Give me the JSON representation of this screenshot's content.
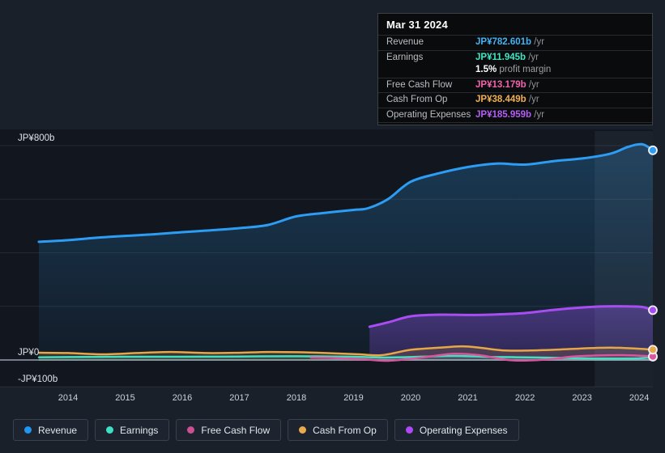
{
  "tooltip": {
    "date": "Mar 31 2024",
    "rows": [
      {
        "id": "revenue",
        "label": "Revenue",
        "value": "JP¥782.601b",
        "suffix": "/yr",
        "color": "#43b2f5"
      },
      {
        "id": "earnings",
        "label": "Earnings",
        "value": "JP¥11.945b",
        "suffix": "/yr",
        "color": "#3ee6c3",
        "sub_value": "1.5%",
        "sub_text": "profit margin"
      },
      {
        "id": "free-cash-flow",
        "label": "Free Cash Flow",
        "value": "JP¥13.179b",
        "suffix": "/yr",
        "color": "#f263ad"
      },
      {
        "id": "cash-from-op",
        "label": "Cash From Op",
        "value": "JP¥38.449b",
        "suffix": "/yr",
        "color": "#f0b153"
      },
      {
        "id": "operating-expenses",
        "label": "Operating Expenses",
        "value": "JP¥185.959b",
        "suffix": "/yr",
        "color": "#b55ef7"
      }
    ]
  },
  "legend": {
    "items": [
      {
        "id": "revenue",
        "label": "Revenue",
        "color": "#1e97f3"
      },
      {
        "id": "earnings",
        "label": "Earnings",
        "color": "#3be0c5"
      },
      {
        "id": "free-cash-flow",
        "label": "Free Cash Flow",
        "color": "#cf4f93"
      },
      {
        "id": "cash-from-op",
        "label": "Cash From Op",
        "color": "#e9a94e"
      },
      {
        "id": "operating-expenses",
        "label": "Operating Expenses",
        "color": "#ae49f5"
      }
    ]
  },
  "chart_data": {
    "type": "area",
    "title": "Financial history: revenue, earnings, cash flow and operating expenses (trailing twelve months)",
    "unit": "JP¥ billions",
    "xlim": [
      2013.49,
      2024.24
    ],
    "ylim": [
      -100,
      800
    ],
    "grid": true,
    "legend_position": "bottom",
    "x_axis": {
      "ticks": [
        2014,
        2015,
        2016,
        2017,
        2018,
        2019,
        2020,
        2021,
        2022,
        2023,
        2024
      ]
    },
    "y_axis": {
      "labels": [
        {
          "text": "JP¥800b",
          "value": 800
        },
        {
          "text": "JP¥0",
          "value": 0
        },
        {
          "text": "-JP¥100b",
          "value": -100
        }
      ],
      "gridline_values": [
        800,
        600,
        400,
        200,
        0,
        -100
      ]
    },
    "highlight_band": {
      "x_start": 2023.22,
      "x_end": 2024.24
    },
    "series": [
      {
        "name": "Revenue",
        "id": "revenue",
        "color": "#2d9df4",
        "width": 3,
        "fill": "gradient",
        "points": [
          [
            2013.49,
            441
          ],
          [
            2014,
            447
          ],
          [
            2014.5,
            456
          ],
          [
            2015,
            463
          ],
          [
            2015.5,
            469
          ],
          [
            2016,
            477
          ],
          [
            2016.5,
            484
          ],
          [
            2017,
            492
          ],
          [
            2017.5,
            504
          ],
          [
            2018,
            536
          ],
          [
            2018.5,
            549
          ],
          [
            2019,
            560
          ],
          [
            2019.25,
            566
          ],
          [
            2019.6,
            600
          ],
          [
            2020,
            665
          ],
          [
            2020.5,
            697
          ],
          [
            2021,
            720
          ],
          [
            2021.5,
            733
          ],
          [
            2022,
            729
          ],
          [
            2022.5,
            742
          ],
          [
            2023,
            752
          ],
          [
            2023.5,
            770
          ],
          [
            2023.8,
            795
          ],
          [
            2024.05,
            805
          ],
          [
            2024.24,
            782.601
          ]
        ]
      },
      {
        "name": "Operating Expenses",
        "id": "operating-expenses",
        "color": "#a94df2",
        "width": 3,
        "fill": "gradient",
        "points": [
          [
            2019.28,
            124
          ],
          [
            2019.6,
            140
          ],
          [
            2020,
            163
          ],
          [
            2020.5,
            169
          ],
          [
            2021,
            168
          ],
          [
            2021.5,
            170
          ],
          [
            2022,
            175
          ],
          [
            2022.5,
            187
          ],
          [
            2023,
            196
          ],
          [
            2023.4,
            200
          ],
          [
            2023.8,
            200
          ],
          [
            2024.05,
            198
          ],
          [
            2024.24,
            185.959
          ]
        ]
      },
      {
        "name": "Cash From Op",
        "id": "cash-from-op",
        "color": "#e7a748",
        "width": 2.5,
        "fill": "soft",
        "points": [
          [
            2013.49,
            27
          ],
          [
            2014,
            26
          ],
          [
            2014.6,
            21
          ],
          [
            2015.2,
            26
          ],
          [
            2015.8,
            30
          ],
          [
            2016.4,
            26
          ],
          [
            2017,
            27
          ],
          [
            2017.5,
            30
          ],
          [
            2018,
            29
          ],
          [
            2018.5,
            26
          ],
          [
            2019.1,
            21
          ],
          [
            2019.5,
            18
          ],
          [
            2020,
            38
          ],
          [
            2020.5,
            46
          ],
          [
            2020.9,
            51
          ],
          [
            2021.2,
            46
          ],
          [
            2021.6,
            36
          ],
          [
            2022,
            35
          ],
          [
            2022.5,
            38
          ],
          [
            2022.9,
            42
          ],
          [
            2023.5,
            46
          ],
          [
            2024,
            42
          ],
          [
            2024.24,
            38.449
          ]
        ]
      },
      {
        "name": "Earnings",
        "id": "earnings",
        "color": "#46dec0",
        "width": 2.5,
        "fill": "soft",
        "points": [
          [
            2013.49,
            10
          ],
          [
            2014,
            11
          ],
          [
            2015,
            12
          ],
          [
            2016,
            12
          ],
          [
            2017,
            13
          ],
          [
            2018,
            14
          ],
          [
            2019,
            12
          ],
          [
            2019.5,
            9
          ],
          [
            2020,
            11
          ],
          [
            2020.75,
            15
          ],
          [
            2021.5,
            11
          ],
          [
            2022,
            10
          ],
          [
            2022.6,
            8
          ],
          [
            2023,
            6
          ],
          [
            2023.5,
            5
          ],
          [
            2024,
            6
          ],
          [
            2024.24,
            11.945
          ]
        ]
      },
      {
        "name": "Free Cash Flow",
        "id": "free-cash-flow",
        "color": "#d9569e",
        "width": 2.5,
        "fill": "none",
        "points": [
          [
            2018.25,
            9
          ],
          [
            2018.7,
            7
          ],
          [
            2019.2,
            2
          ],
          [
            2019.55,
            -3
          ],
          [
            2019.9,
            2
          ],
          [
            2020.3,
            12
          ],
          [
            2020.75,
            23
          ],
          [
            2021.2,
            18
          ],
          [
            2021.7,
            0
          ],
          [
            2022,
            -2
          ],
          [
            2022.4,
            2
          ],
          [
            2022.8,
            12
          ],
          [
            2023.3,
            17
          ],
          [
            2023.7,
            18
          ],
          [
            2024,
            16
          ],
          [
            2024.24,
            13.179
          ]
        ]
      }
    ]
  }
}
